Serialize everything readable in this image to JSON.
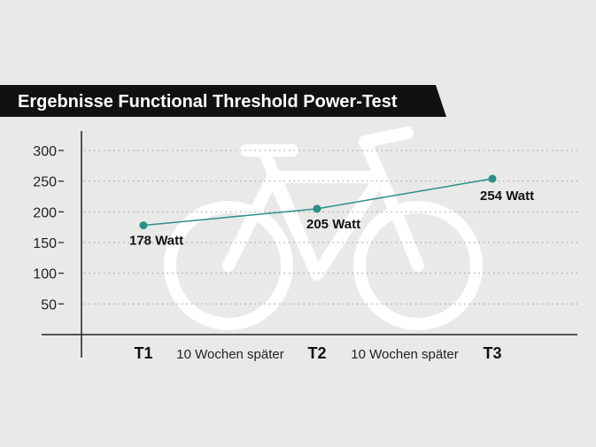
{
  "chart_data": {
    "type": "line",
    "title": "Ergebnisse Functional Threshold Power-Test",
    "categories": [
      "T1",
      "T2",
      "T3"
    ],
    "values": [
      178,
      205,
      254
    ],
    "data_labels": [
      "178 Watt",
      "205 Watt",
      "254 Watt"
    ],
    "between_labels": [
      "10 Wochen später",
      "10 Wochen später"
    ],
    "yticks": [
      50,
      100,
      150,
      200,
      250,
      300
    ],
    "ylim": [
      0,
      300
    ],
    "grid": "dotted horizontal",
    "legend": "none",
    "background_icon": "bicycle-icon"
  },
  "colors": {
    "background": "#e9e9e8",
    "title_band": "#111111",
    "title_text": "#ffffff",
    "line": "#2a8f86",
    "marker": "#2a8f86",
    "grid": "#9a9a9a",
    "axis": "#222222",
    "bicycle": "#ffffff"
  }
}
